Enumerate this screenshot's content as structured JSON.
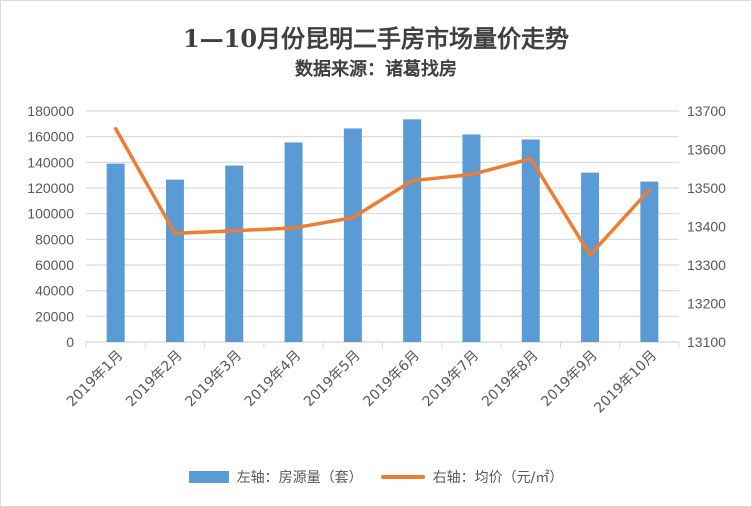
{
  "chart_data": {
    "type": "bar+line",
    "title": "1—10月份昆明二手房市场量价走势",
    "subtitle": "数据来源：诸葛找房",
    "categories": [
      "2019年1月",
      "2019年2月",
      "2019年3月",
      "2019年4月",
      "2019年5月",
      "2019年6月",
      "2019年7月",
      "2019年8月",
      "2019年9月",
      "2019年10月"
    ],
    "series": [
      {
        "name": "左轴：房源量（套）",
        "type": "bar",
        "axis": "left",
        "color": "#5b9bd5",
        "values": [
          139000,
          126500,
          137500,
          155500,
          166400,
          173500,
          161700,
          157800,
          132000,
          125000
        ]
      },
      {
        "name": "右轴：均价（元/㎡）",
        "type": "line",
        "axis": "right",
        "color": "#ed7d31",
        "values": [
          13654,
          13382,
          13389,
          13396,
          13423,
          13519,
          13535,
          13576,
          13326,
          13495
        ]
      }
    ],
    "left_axis": {
      "ylim": [
        0,
        180000
      ],
      "ticks": [
        "0",
        "20000",
        "40000",
        "60000",
        "80000",
        "100000",
        "120000",
        "140000",
        "160000",
        "180000"
      ]
    },
    "right_axis": {
      "ylim": [
        13100,
        13700
      ],
      "ticks": [
        "13100",
        "13200",
        "13300",
        "13400",
        "13500",
        "13600",
        "13700"
      ]
    },
    "grid": true,
    "legend": "bottom"
  }
}
